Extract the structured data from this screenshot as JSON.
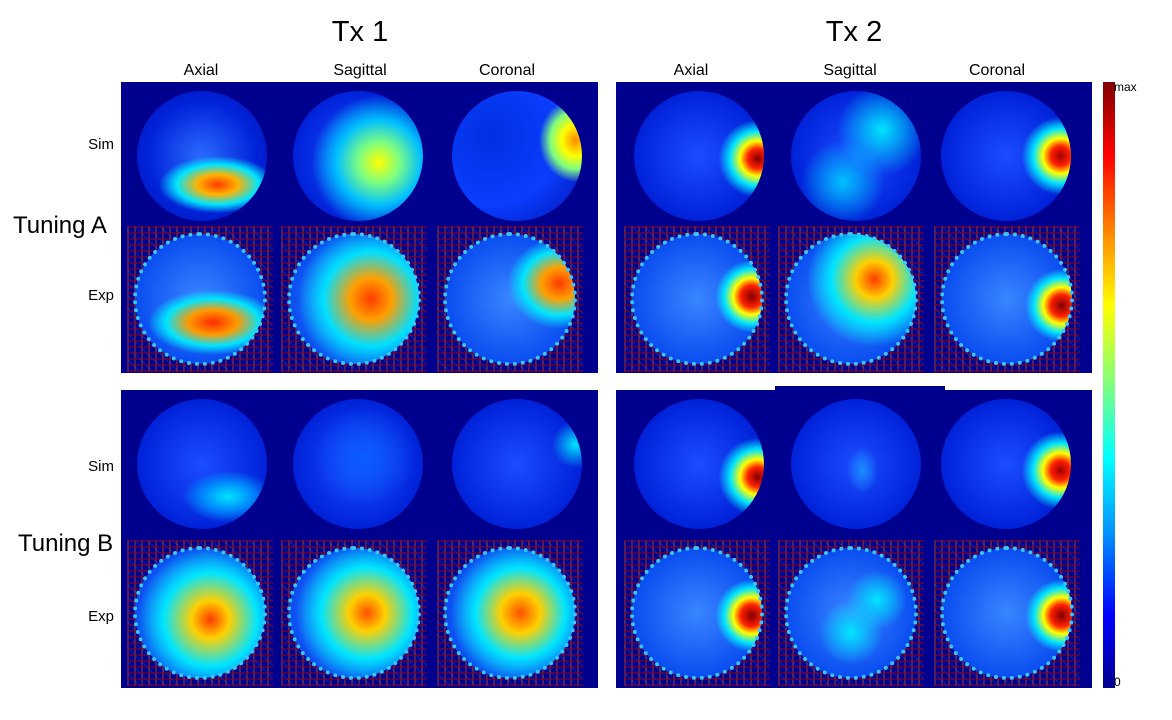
{
  "titles": {
    "tx1": "Tx 1",
    "tx2": "Tx 2"
  },
  "columns": {
    "tx1": [
      "Axial",
      "Sagittal",
      "Coronal"
    ],
    "tx2": [
      "Axial",
      "Sagittal",
      "Coronal"
    ]
  },
  "rows": {
    "sim": "Sim",
    "exp": "Exp"
  },
  "tunings": {
    "a": "Tuning A",
    "b": "Tuning B"
  },
  "colorbar": {
    "max_label": "max",
    "min_label": "0",
    "colors": [
      "#800000",
      "#ff0000",
      "#ff8a00",
      "#ffff00",
      "#7fff7f",
      "#00ffff",
      "#008cff",
      "#0000ff",
      "#00008f"
    ]
  }
}
